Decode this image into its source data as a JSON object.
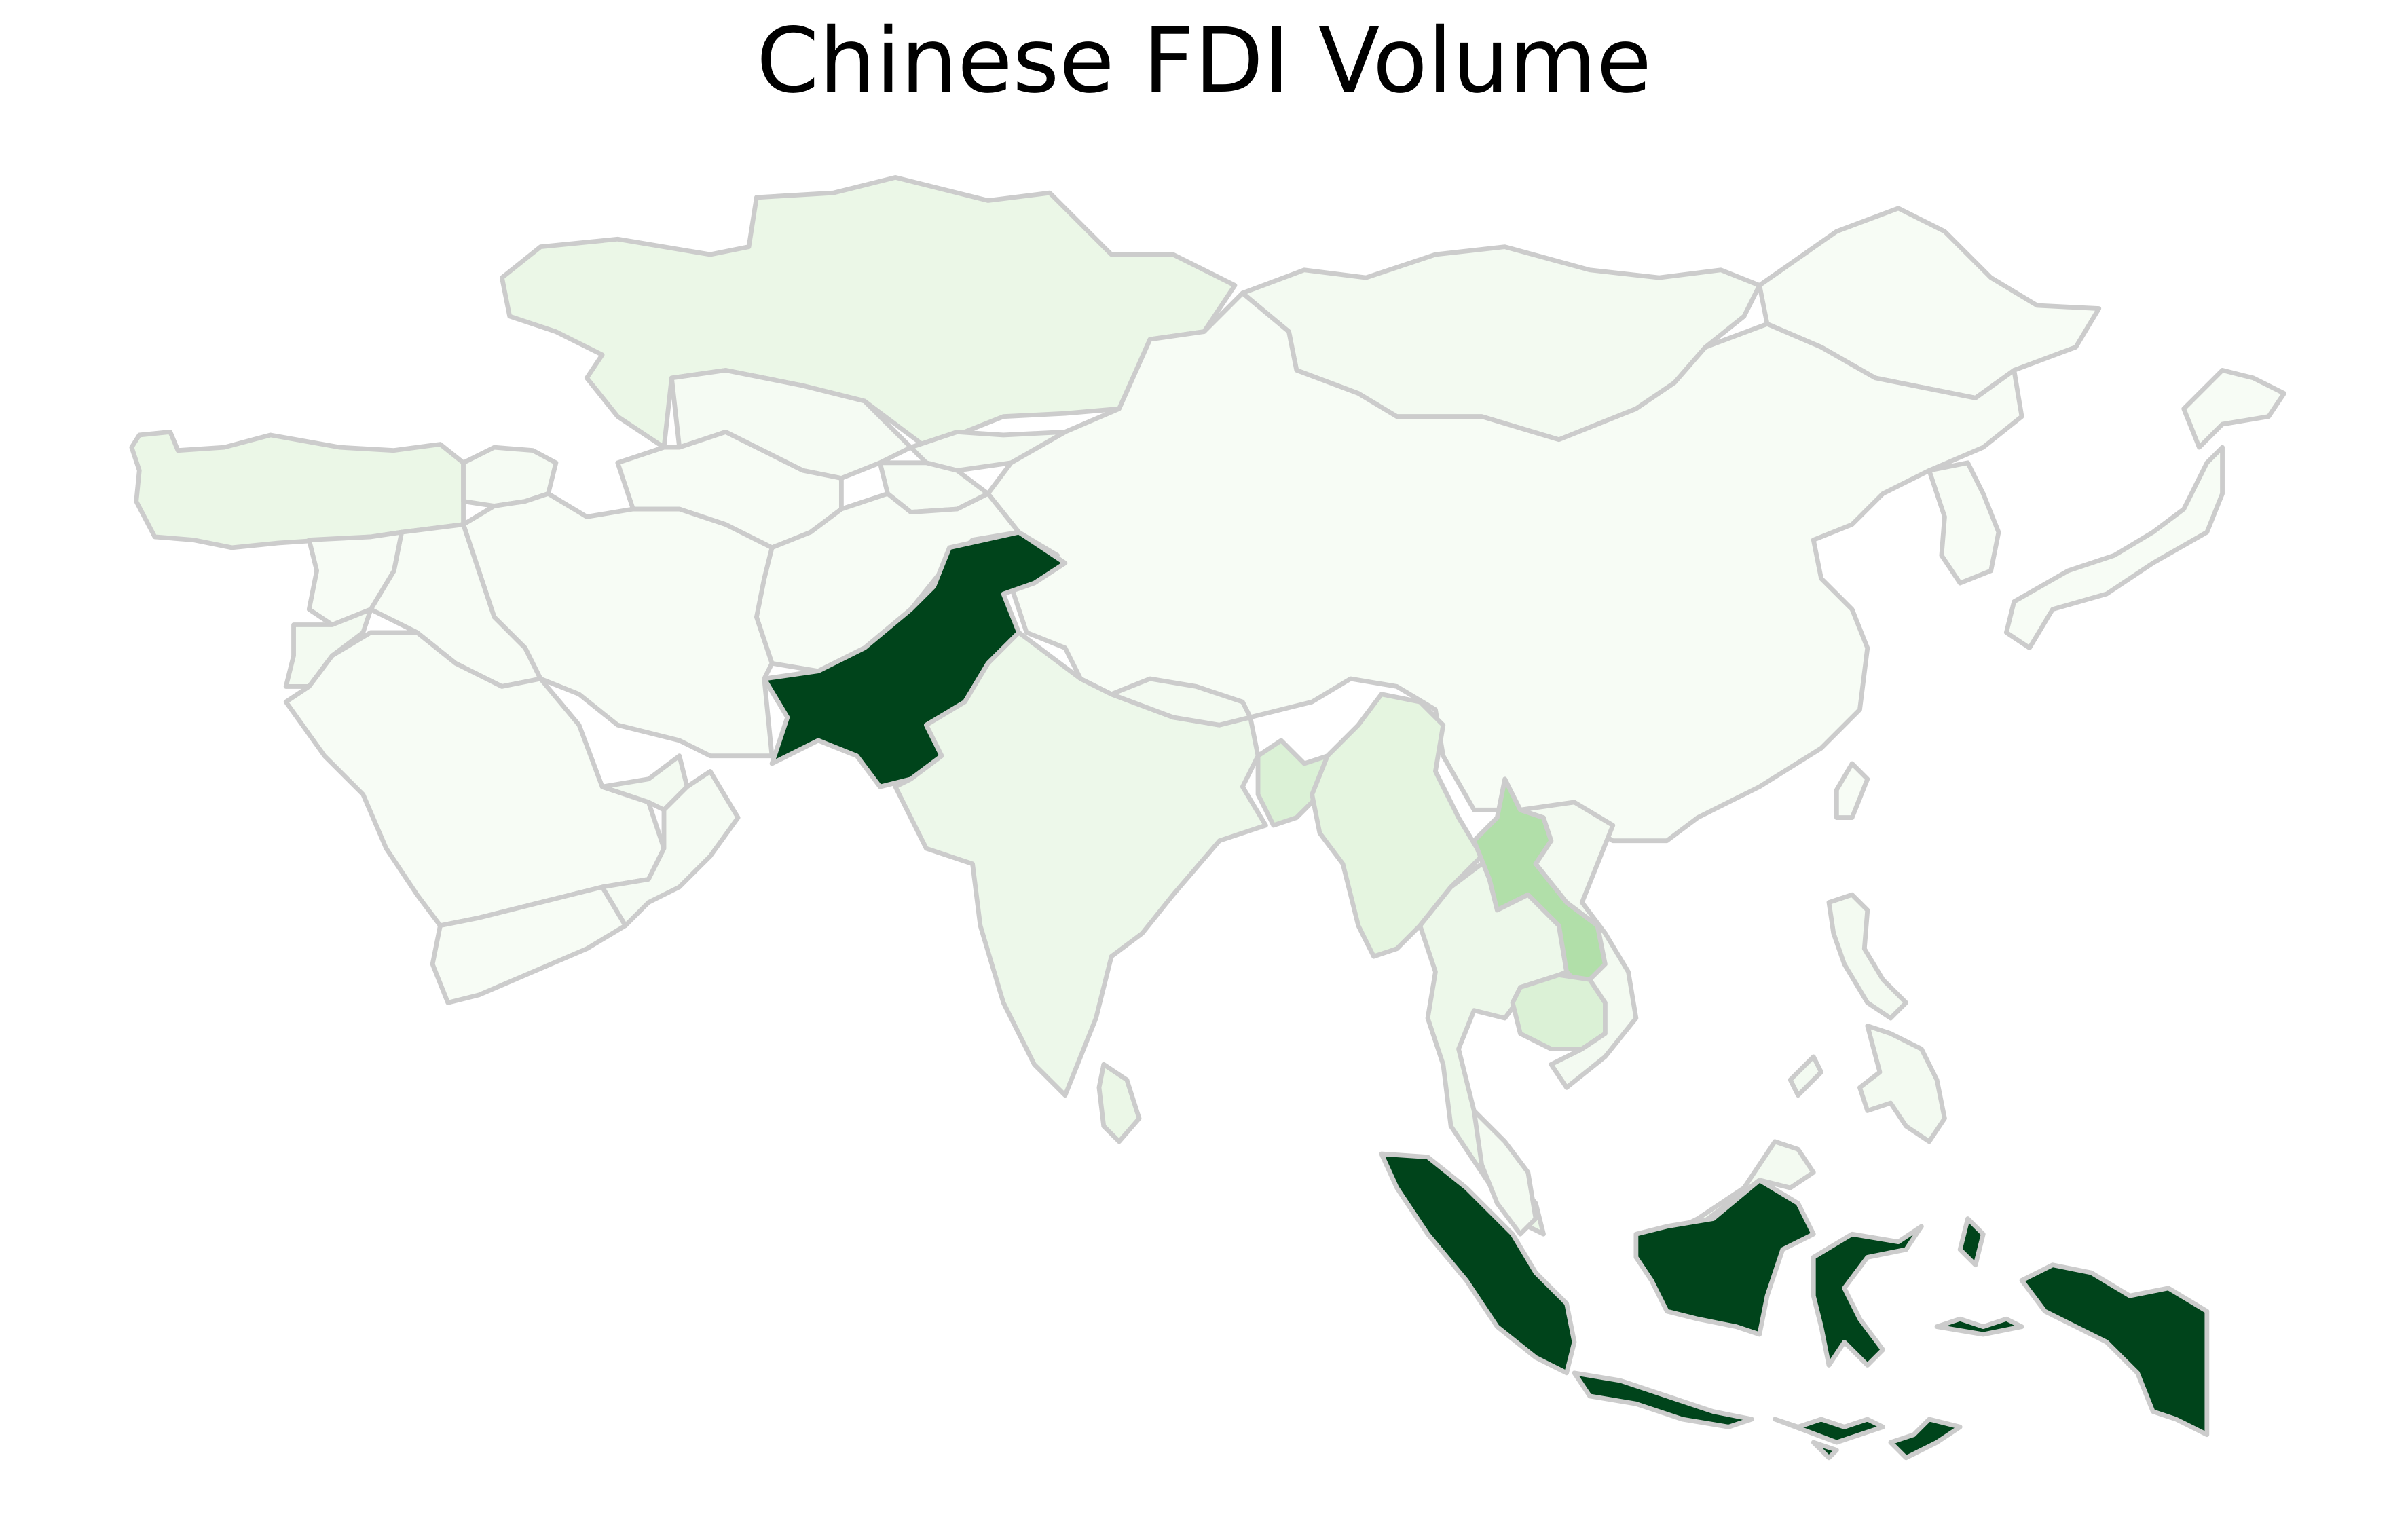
{
  "title": "Chinese FDI Volume",
  "color_scale": {
    "name": "Greens",
    "levels": [
      "#f7fcf5",
      "#edf8ea",
      "#e5f5e0",
      "#d8f0d3",
      "#c7e9c0",
      "#b5e0ad",
      "#a1d99b",
      "#2c9150",
      "#00441b"
    ]
  },
  "border_color": "#cccccc",
  "regions": [
    {
      "id": "kazakhstan",
      "intensity": 0.16
    },
    {
      "id": "turkey",
      "intensity": 0.16
    },
    {
      "id": "mongolia",
      "intensity": 0.05
    },
    {
      "id": "russia-far-east",
      "intensity": 0.0
    },
    {
      "id": "china",
      "intensity": 0.0
    },
    {
      "id": "japan",
      "intensity": 0.0
    },
    {
      "id": "korea",
      "intensity": 0.0
    },
    {
      "id": "uzbekistan",
      "intensity": 0.02
    },
    {
      "id": "turkmenistan",
      "intensity": 0.0
    },
    {
      "id": "kyrgyzstan",
      "intensity": 0.05
    },
    {
      "id": "tajikistan",
      "intensity": 0.02
    },
    {
      "id": "caucasus",
      "intensity": 0.02
    },
    {
      "id": "iran",
      "intensity": 0.0
    },
    {
      "id": "afghanistan",
      "intensity": 0.0
    },
    {
      "id": "iraq",
      "intensity": 0.0
    },
    {
      "id": "syria",
      "intensity": 0.0
    },
    {
      "id": "jordan",
      "intensity": 0.05
    },
    {
      "id": "saudi-arabia",
      "intensity": 0.0
    },
    {
      "id": "yemen",
      "intensity": 0.0
    },
    {
      "id": "oman",
      "intensity": 0.02
    },
    {
      "id": "uae",
      "intensity": 0.05
    },
    {
      "id": "pakistan",
      "intensity": 1.0
    },
    {
      "id": "india",
      "intensity": 0.13
    },
    {
      "id": "nepal",
      "intensity": 0.05
    },
    {
      "id": "bangladesh",
      "intensity": 0.35
    },
    {
      "id": "myanmar",
      "intensity": 0.25
    },
    {
      "id": "thailand",
      "intensity": 0.13
    },
    {
      "id": "laos",
      "intensity": 0.65
    },
    {
      "id": "cambodia",
      "intensity": 0.35
    },
    {
      "id": "vietnam",
      "intensity": 0.05
    },
    {
      "id": "malaysia",
      "intensity": 0.05
    },
    {
      "id": "philippines",
      "intensity": 0.05
    },
    {
      "id": "sri-lanka",
      "intensity": 0.16
    },
    {
      "id": "taiwan",
      "intensity": 0.0
    },
    {
      "id": "indonesia",
      "intensity": 1.0
    }
  ]
}
